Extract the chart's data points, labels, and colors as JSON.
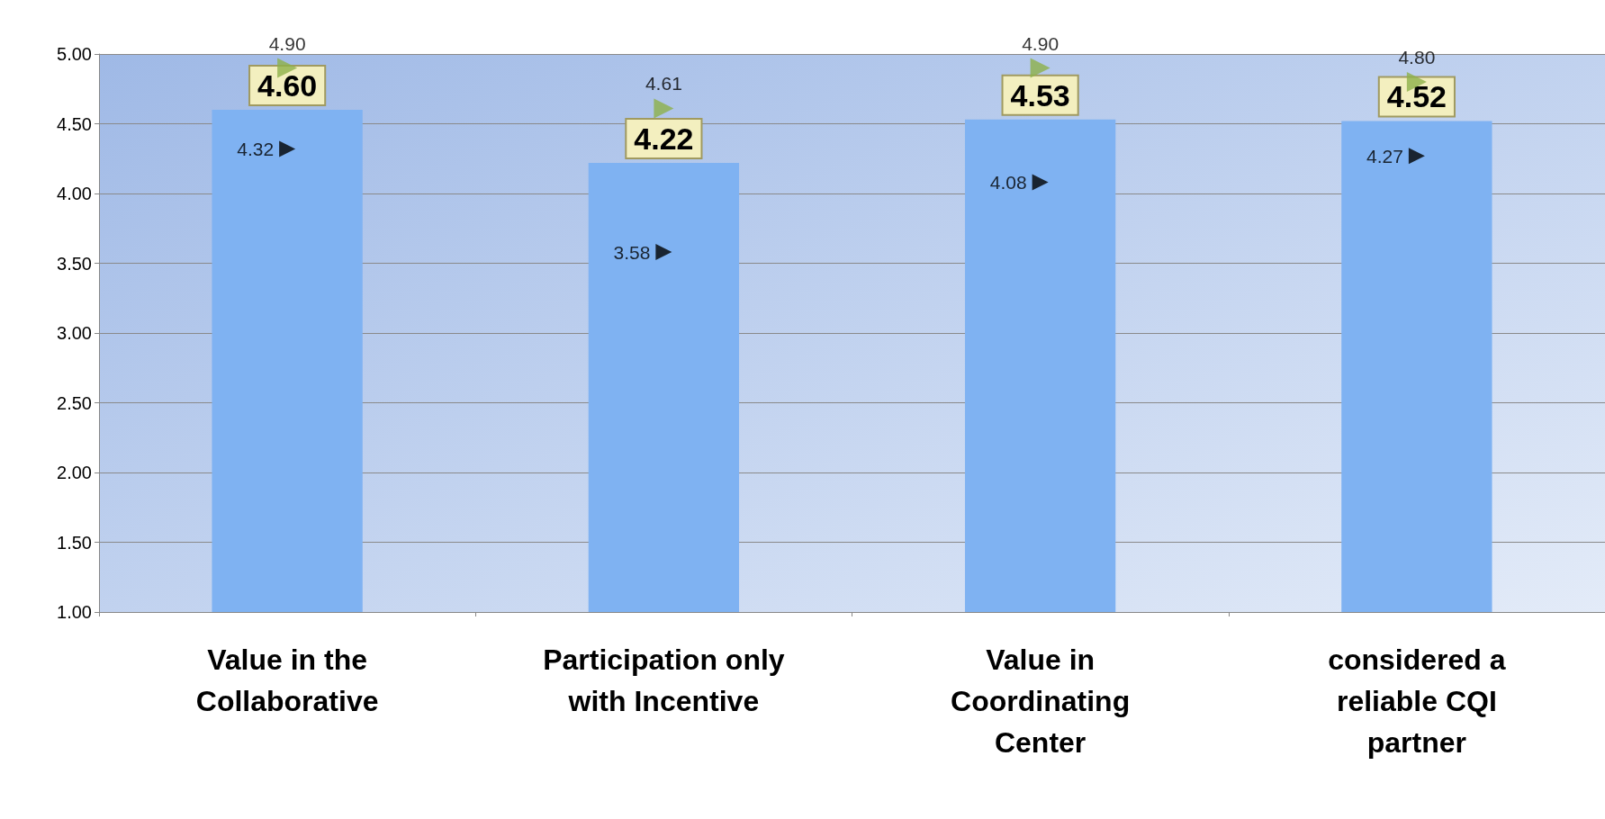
{
  "chart_data": {
    "type": "bar",
    "categories": [
      "Value in the\nCollaborative",
      "Participation only\nwith Incentive",
      "Value in\nCoordinating\nCenter",
      "considered a\nreliable CQI\npartner"
    ],
    "series": [
      {
        "color": "#7fb2f2",
        "values": [
          4.6,
          4.22,
          4.53,
          4.52
        ],
        "value_labels": [
          "4.60",
          "4.22",
          "4.53",
          "4.52"
        ]
      },
      {
        "type": "scatter",
        "color": "#000000",
        "values": [
          4.32,
          3.58,
          4.08,
          4.27
        ],
        "value_labels": [
          "4.32",
          "3.58",
          "4.08",
          "4.27"
        ]
      },
      {
        "type": "scatter",
        "color": "#8db04a",
        "values": [
          4.9,
          4.61,
          4.9,
          4.8
        ],
        "value_labels": [
          "4.90",
          "4.61",
          "4.90",
          "4.80"
        ]
      }
    ],
    "ylim": [
      1,
      5
    ],
    "yticks": [
      {
        "value": 1,
        "label": "1.00"
      },
      {
        "value": 1.5,
        "label": "1.50"
      },
      {
        "value": 2,
        "label": "2.00"
      },
      {
        "value": 2.5,
        "label": "2.50"
      },
      {
        "value": 3,
        "label": "3.00"
      },
      {
        "value": 3.5,
        "label": "3.50"
      },
      {
        "value": 4,
        "label": "4.00"
      },
      {
        "value": 4.5,
        "label": "4.50"
      },
      {
        "value": 5,
        "label": "5.00"
      }
    ],
    "grid": "y",
    "marker": "triangle"
  }
}
